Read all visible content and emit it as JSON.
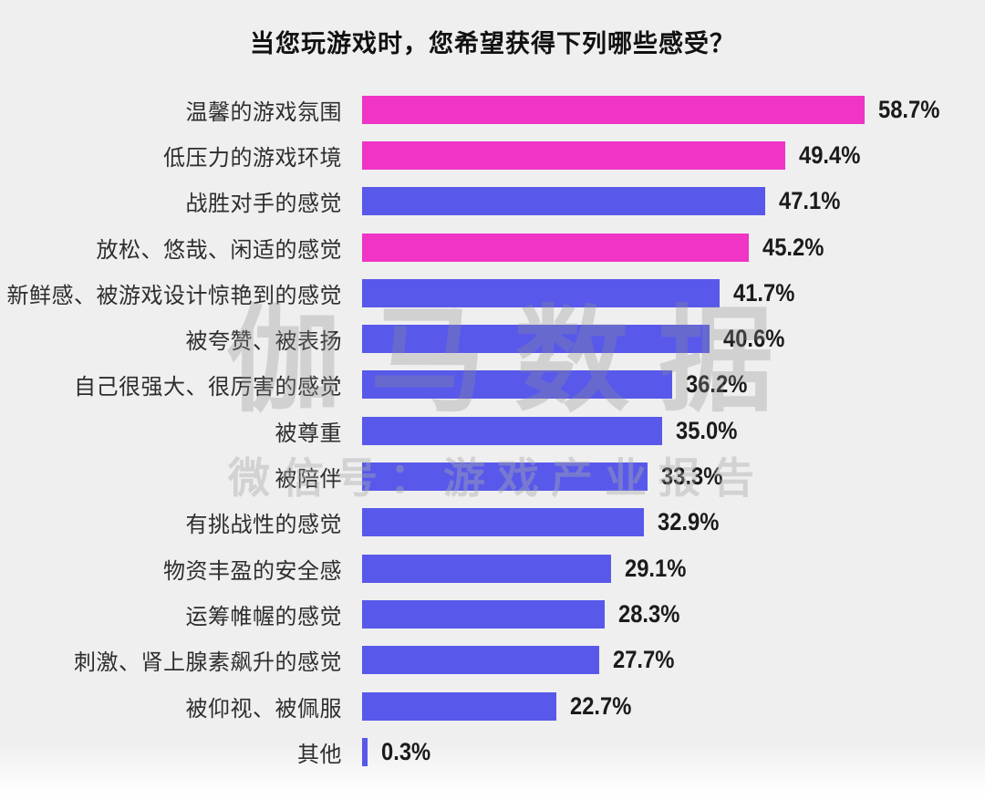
{
  "title": "当您玩游戏时，您希望获得下列哪些感受？",
  "watermark": {
    "brand": "伽马数据",
    "subtitle": "微信号：游戏产业报告"
  },
  "colors": {
    "highlight_pink": "#EF34C6",
    "bar_blue": "#5859EA",
    "background": "#EFEFF0",
    "title_text": "#111111",
    "label_text": "#2E2E2E"
  },
  "chart_data": {
    "type": "bar",
    "orientation": "horizontal",
    "title": "当您玩游戏时，您希望获得下列哪些感受？",
    "xlabel": "",
    "ylabel": "",
    "xlim": [
      0,
      62
    ],
    "grid": false,
    "legend": false,
    "axes_hidden": true,
    "categories": [
      "温馨的游戏氛围",
      "低压力的游戏环境",
      "战胜对手的感觉",
      "放松、悠哉、闲适的感觉",
      "新鲜感、被游戏设计惊艳到的感觉",
      "被夸赞、被表扬",
      "自己很强大、很厉害的感觉",
      "被尊重",
      "被陪伴",
      "有挑战性的感觉",
      "物资丰盈的安全感",
      "运筹帷幄的感觉",
      "刺激、肾上腺素飙升的感觉",
      "被仰视、被佩服",
      "其他"
    ],
    "values": [
      58.7,
      49.4,
      47.1,
      45.2,
      41.7,
      40.6,
      36.2,
      35.0,
      33.3,
      32.9,
      29.1,
      28.3,
      27.7,
      22.7,
      0.3
    ],
    "value_labels": [
      "58.7%",
      "49.4%",
      "47.1%",
      "45.2%",
      "41.7%",
      "40.6%",
      "36.2%",
      "35.0%",
      "33.3%",
      "32.9%",
      "29.1%",
      "28.3%",
      "27.7%",
      "22.7%",
      "0.3%"
    ],
    "highlighted_indices": [
      0,
      1,
      3
    ]
  }
}
